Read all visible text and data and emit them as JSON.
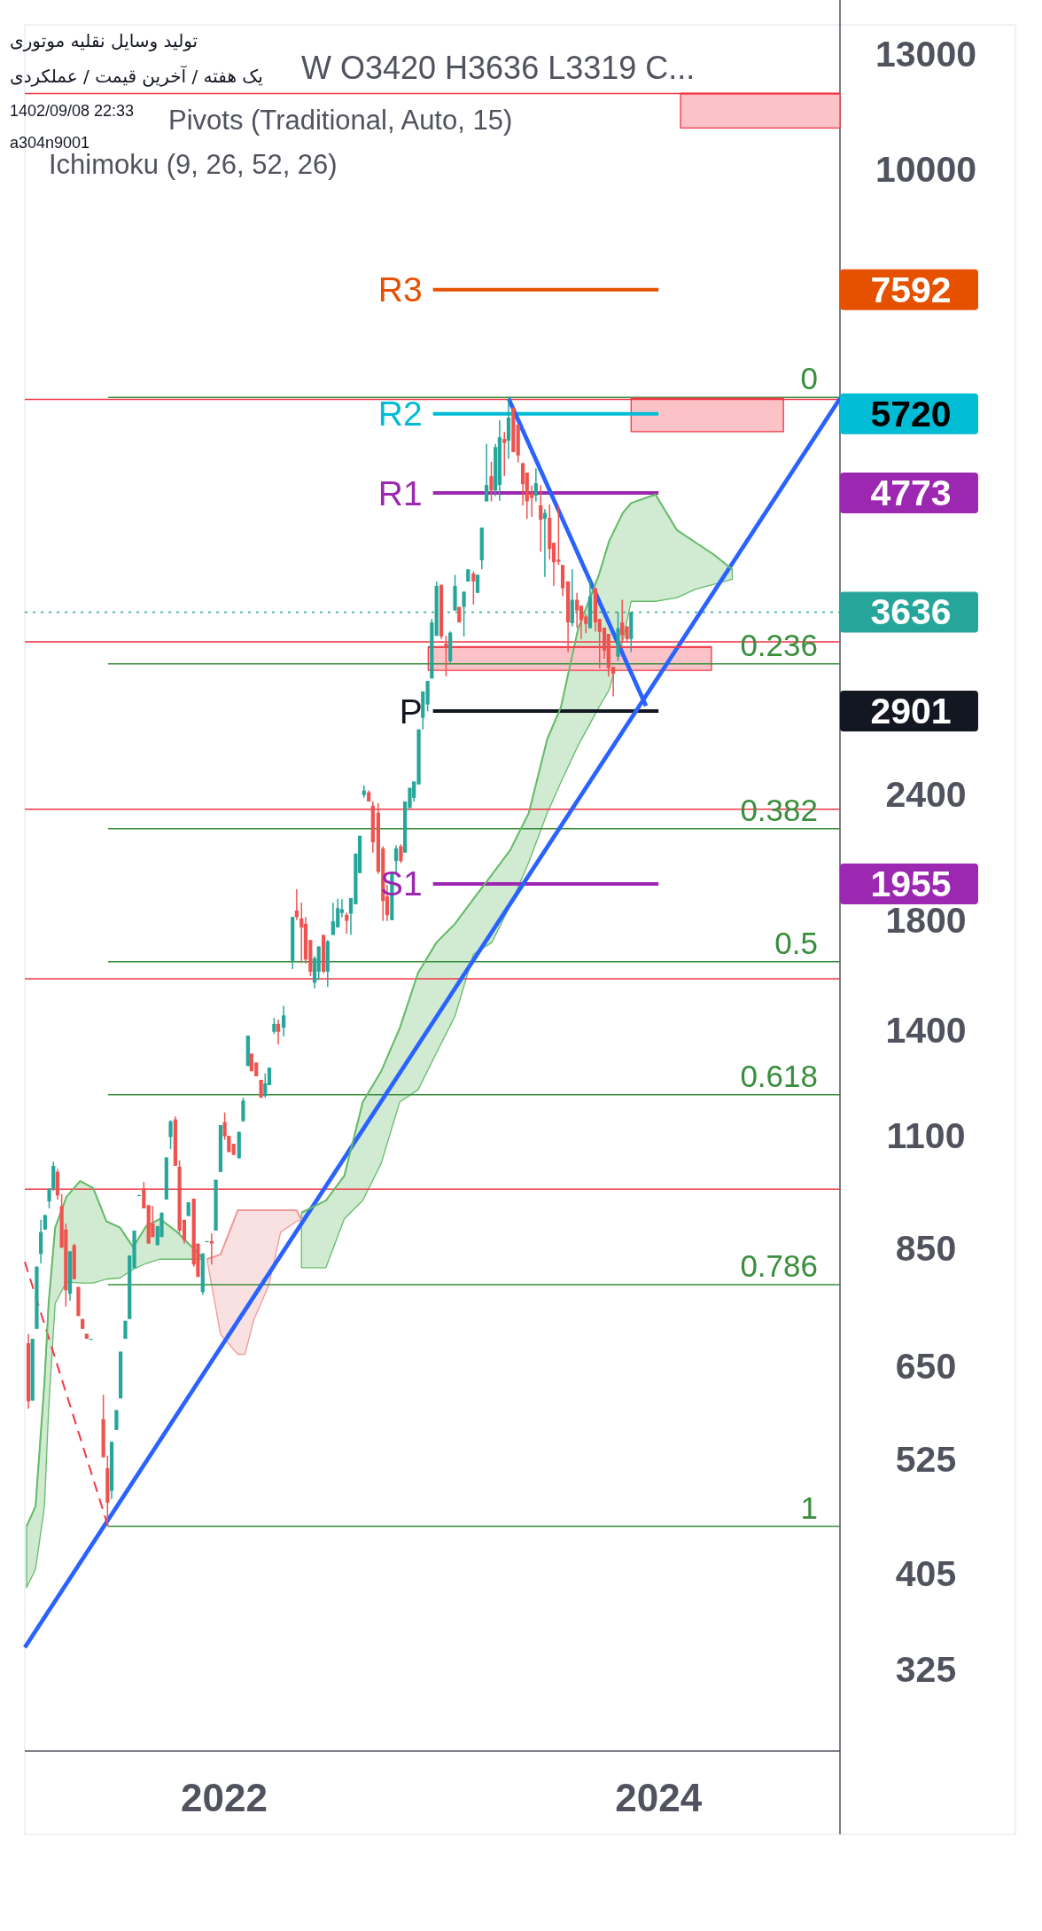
{
  "chart_data": {
    "type": "candlestick",
    "title": "تولید وسایل نقلیه موتوری",
    "subtitle": "یک هفته / آخرین قیمت / عملکردی",
    "annotations": [
      "1402/09/08 22:33",
      "a304n9001",
      "W  O3420  H3636  L3319  C...",
      "Pivots (Traditional, Auto, 15)",
      "Ichimoku (9, 26, 52, 26)",
      "7592",
      "5720",
      "4773",
      "2901",
      "1955"
    ],
    "log": true,
    "xlim": [
      "2021-01-31",
      "2024-11-01"
    ],
    "ylim": [
      270,
      13900
    ],
    "xticks": [
      {
        "value": "2022-01-01",
        "label": "2022"
      },
      {
        "value": "2024-01-01",
        "label": "2024"
      }
    ],
    "yticks": [
      325,
      405,
      525,
      650,
      850,
      1100,
      1400,
      1800,
      2400,
      10000,
      13000
    ],
    "x": [
      "2021-02-06",
      "2021-02-13",
      "2021-02-20",
      "2021-02-27",
      "2021-03-06",
      "2021-03-13",
      "2021-03-20",
      "2021-03-27",
      "2021-04-03",
      "2021-04-10",
      "2021-04-17",
      "2021-04-24",
      "2021-05-01",
      "2021-05-08",
      "2021-05-15",
      "2021-05-22",
      "2021-06-12",
      "2021-06-19",
      "2021-06-26",
      "2021-07-04",
      "2021-07-11",
      "2021-07-19",
      "2021-07-26",
      "2021-08-03",
      "2021-08-11",
      "2021-08-19",
      "2021-08-27",
      "2021-09-03",
      "2021-09-11",
      "2021-09-18",
      "2021-09-26",
      "2021-10-03",
      "2021-10-11",
      "2021-10-18",
      "2021-10-26",
      "2021-11-02",
      "2021-11-11",
      "2021-11-18",
      "2021-11-26",
      "2021-12-03",
      "2021-12-11",
      "2021-12-18",
      "2021-12-26",
      "2022-01-02",
      "2022-01-09",
      "2022-01-17",
      "2022-01-26",
      "2022-02-02",
      "2022-02-10",
      "2022-02-16",
      "2022-02-24",
      "2022-03-04",
      "2022-03-11",
      "2022-03-18",
      "2022-03-26",
      "2022-04-02",
      "2022-04-11",
      "2022-04-26",
      "2022-05-03",
      "2022-05-11",
      "2022-05-18",
      "2022-05-26",
      "2022-06-02",
      "2022-06-09",
      "2022-06-17",
      "2022-06-24",
      "2022-07-03",
      "2022-07-11",
      "2022-07-18",
      "2022-07-26",
      "2022-08-02",
      "2022-08-10",
      "2022-08-17",
      "2022-08-24",
      "2022-09-01",
      "2022-09-08",
      "2022-09-17",
      "2022-09-25",
      "2022-10-02",
      "2022-10-10",
      "2022-10-17",
      "2022-10-25",
      "2022-11-01",
      "2022-11-09",
      "2022-11-16",
      "2022-11-24",
      "2022-12-01",
      "2022-12-09",
      "2022-12-16",
      "2022-12-24",
      "2023-01-01",
      "2023-01-09",
      "2023-01-16",
      "2023-01-24",
      "2023-01-31",
      "2023-02-08",
      "2023-02-15",
      "2023-02-24",
      "2023-03-03",
      "2023-03-10",
      "2023-03-18",
      "2023-03-26",
      "2023-04-02",
      "2023-04-09",
      "2023-04-17",
      "2023-04-24",
      "2023-05-02",
      "2023-05-10",
      "2023-05-18",
      "2023-05-25",
      "2023-06-02",
      "2023-06-09",
      "2023-06-17",
      "2023-06-24",
      "2023-07-02",
      "2023-07-09",
      "2023-07-17",
      "2023-07-24",
      "2023-08-02",
      "2023-08-09",
      "2023-08-17",
      "2023-08-24",
      "2023-09-01",
      "2023-09-08",
      "2023-09-17",
      "2023-09-24",
      "2023-10-02",
      "2023-10-09",
      "2023-10-17",
      "2023-10-25",
      "2023-11-01",
      "2023-11-09",
      "2023-11-16"
    ],
    "ohlc": [
      [
        685,
        700,
        590,
        600
      ],
      [
        601,
        692,
        601,
        692
      ],
      [
        708,
        816,
        708,
        816
      ],
      [
        840,
        908,
        822,
        883
      ],
      [
        888,
        918,
        888,
        918
      ],
      [
        947,
        975,
        932,
        975
      ],
      [
        975,
        1037,
        970,
        1027
      ],
      [
        1013,
        1020,
        951,
        960
      ],
      [
        937,
        963,
        852,
        852
      ],
      [
        888,
        900,
        745,
        773
      ],
      [
        767,
        845,
        755,
        845
      ],
      [
        857,
        860,
        793,
        793
      ],
      [
        779,
        779,
        729,
        729
      ],
      [
        724,
        724,
        708,
        708
      ],
      [
        700,
        700,
        692,
        692
      ],
      [
        692,
        692,
        692,
        692
      ],
      [
        576,
        609,
        528,
        528
      ],
      [
        515,
        530,
        451,
        476
      ],
      [
        489,
        547,
        480,
        547
      ],
      [
        562,
        588,
        562,
        588
      ],
      [
        604,
        672,
        604,
        672
      ],
      [
        692,
        721,
        692,
        721
      ],
      [
        724,
        837,
        724,
        837
      ],
      [
        813,
        886,
        813,
        886
      ],
      [
        961,
        961,
        961,
        961
      ],
      [
        975,
        990,
        932,
        932
      ],
      [
        939,
        939,
        860,
        860
      ],
      [
        900,
        937,
        873,
        873
      ],
      [
        857,
        895,
        857,
        895
      ],
      [
        873,
        923,
        873,
        923
      ],
      [
        951,
        1047,
        951,
        1047
      ],
      [
        1097,
        1140,
        1067,
        1137
      ],
      [
        1142,
        1150,
        1027,
        1027
      ],
      [
        1025,
        1040,
        880,
        886
      ],
      [
        908,
        908,
        860,
        867
      ],
      [
        916,
        945,
        916,
        945
      ],
      [
        953,
        953,
        816,
        820
      ],
      [
        860,
        860,
        797,
        797
      ],
      [
        770,
        841,
        765,
        841
      ],
      [
        865,
        865,
        865,
        865
      ],
      [
        865,
        880,
        820,
        860
      ],
      [
        886,
        995,
        886,
        995
      ],
      [
        1013,
        1127,
        1013,
        1127
      ],
      [
        1135,
        1160,
        1090,
        1099
      ],
      [
        1100,
        1100,
        1060,
        1060
      ],
      [
        1080,
        1080,
        1053,
        1053
      ],
      [
        1045,
        1110,
        1045,
        1110
      ],
      [
        1138,
        1200,
        1135,
        1192
      ],
      [
        1290,
        1383,
        1290,
        1383
      ],
      [
        1327,
        1327,
        1275,
        1275
      ],
      [
        1300,
        1300,
        1260,
        1260
      ],
      [
        1250,
        1250,
        1200,
        1200
      ],
      [
        1205,
        1268,
        1200,
        1240
      ],
      [
        1235,
        1285,
        1235,
        1285
      ],
      [
        1395,
        1440,
        1388,
        1420
      ],
      [
        1420,
        1434,
        1355,
        1395
      ],
      [
        1408,
        1480,
        1380,
        1448
      ],
      [
        1640,
        1813,
        1610,
        1813
      ],
      [
        1840,
        1931,
        1800,
        1812
      ],
      [
        1807,
        1873,
        1632,
        1770
      ],
      [
        1785,
        1813,
        1630,
        1645
      ],
      [
        1720,
        1720,
        1585,
        1600
      ],
      [
        1560,
        1658,
        1540,
        1650
      ],
      [
        1600,
        1695,
        1570,
        1695
      ],
      [
        1740,
        1740,
        1594,
        1600
      ],
      [
        1600,
        1720,
        1545,
        1715
      ],
      [
        1740,
        1873,
        1740,
        1795
      ],
      [
        1770,
        1890,
        1770,
        1850
      ],
      [
        1830,
        1888,
        1812,
        1845
      ],
      [
        1822,
        1830,
        1745,
        1797
      ],
      [
        1827,
        1893,
        1740,
        1893
      ],
      [
        1866,
        2095,
        1866,
        2095
      ],
      [
        2004,
        2182,
        2004,
        2182
      ],
      [
        2395,
        2447,
        2380,
        2420
      ],
      [
        2410,
        2420,
        2360,
        2360
      ],
      [
        2337,
        2360,
        2100,
        2150
      ],
      [
        2300,
        2350,
        2000,
        2010
      ],
      [
        2120,
        2130,
        1797,
        1880
      ],
      [
        1900,
        1950,
        1797,
        1820
      ],
      [
        1800,
        2010,
        1800,
        2010
      ],
      [
        2060,
        2135,
        2004,
        2120
      ],
      [
        2130,
        2140,
        2050,
        2060
      ],
      [
        2100,
        2360,
        2100,
        2360
      ],
      [
        2325,
        2435,
        2325,
        2435
      ],
      [
        2380,
        2470,
        2360,
        2470
      ],
      [
        2454,
        2782,
        2454,
        2782
      ],
      [
        2857,
        3034,
        2782,
        3034
      ],
      [
        2945,
        3108,
        2900,
        3108
      ],
      [
        3125,
        3580,
        3125,
        3552
      ],
      [
        3445,
        3900,
        3445,
        3860
      ],
      [
        3870,
        3870,
        3420,
        3440
      ],
      [
        3385,
        3445,
        3140,
        3355
      ],
      [
        3250,
        3480,
        3240,
        3470
      ],
      [
        3650,
        3960,
        3650,
        3860
      ],
      [
        3680,
        3680,
        3552,
        3552
      ],
      [
        3680,
        3810,
        3440,
        3810
      ],
      [
        3900,
        4010,
        3900,
        4010
      ],
      [
        3970,
        3990,
        3700,
        3900
      ],
      [
        3800,
        3960,
        3800,
        3960
      ],
      [
        4094,
        4411,
        4010,
        4411
      ],
      [
        4683,
        5338,
        4683,
        4860
      ],
      [
        4960,
        5127,
        4683,
        4800
      ],
      [
        4800,
        5338,
        4740,
        5300
      ],
      [
        4860,
        5636,
        4690,
        5420
      ],
      [
        5400,
        5490,
        4960,
        5350
      ],
      [
        5380,
        5947,
        5160,
        5670
      ],
      [
        5800,
        5800,
        5240,
        5240
      ],
      [
        5580,
        5580,
        5118,
        5200
      ],
      [
        5110,
        5110,
        4640,
        4870
      ],
      [
        5000,
        5000,
        4500,
        4683
      ],
      [
        4770,
        4855,
        4520,
        4720
      ],
      [
        4745,
        5050,
        4680,
        4880
      ],
      [
        4640,
        4860,
        4175,
        4490
      ],
      [
        4500,
        4600,
        3940,
        4560
      ],
      [
        4510,
        4650,
        4100,
        4200
      ],
      [
        4260,
        4260,
        3860,
        4075
      ],
      [
        4100,
        4640,
        4050,
        4080
      ],
      [
        4050,
        4050,
        3770,
        3840
      ],
      [
        3900,
        3900,
        3320,
        3552
      ],
      [
        3545,
        4010,
        3520,
        3740
      ],
      [
        3740,
        3800,
        3510,
        3650
      ],
      [
        3690,
        3690,
        3420,
        3570
      ],
      [
        3600,
        3620,
        3465,
        3540
      ],
      [
        3505,
        3920,
        3505,
        3770
      ],
      [
        3840,
        3840,
        3480,
        3552
      ],
      [
        3580,
        3580,
        3200,
        3475
      ],
      [
        3510,
        3510,
        3270,
        3330
      ],
      [
        3460,
        3460,
        3140,
        3200
      ],
      [
        3210,
        3210,
        3000,
        3160
      ],
      [
        3285,
        3640,
        3250,
        3505
      ],
      [
        3552,
        3740,
        3400,
        3450
      ],
      [
        3520,
        3520,
        3400,
        3420
      ],
      [
        3420,
        3636,
        3319,
        3636
      ]
    ],
    "ref_lines": [
      {
        "axis": "y",
        "value": 11880,
        "color": "#f23645"
      },
      {
        "axis": "y",
        "value": 5909,
        "color": "#f23645"
      },
      {
        "axis": "y",
        "value": 3397,
        "color": "#f23645"
      },
      {
        "axis": "y",
        "value": 2318,
        "color": "#f23645"
      },
      {
        "axis": "y",
        "value": 1574,
        "color": "#f23645"
      },
      {
        "axis": "y",
        "value": 974,
        "color": "#f23645"
      },
      {
        "axis": "y",
        "value": 3636,
        "label": "3636",
        "color": "#26a69a",
        "line_style": "dotted"
      }
    ],
    "series": [
      {
        "type": "line",
        "color": "#66bb6a",
        "x": [
          "2021-02-03",
          "2021-02-18",
          "2021-03-05",
          "2021-03-12",
          "2021-03-23",
          "2021-04-11",
          "2021-05-04",
          "2021-05-26",
          "2021-06-17",
          "2021-07-10",
          "2021-08-01",
          "2021-08-23",
          "2021-09-15",
          "2021-10-14",
          "2021-11-28"
        ],
        "values": [
          451,
          472,
          626,
          750,
          892,
          957,
          992,
          976,
          905,
          892,
          853,
          895,
          910,
          883,
          830
        ],
        "upper": [
          451,
          472,
          626,
          750,
          892,
          957,
          992,
          976,
          905,
          892,
          853,
          895,
          910,
          883,
          830
        ],
        "lower": [
          392,
          409,
          472,
          589,
          750,
          788,
          786,
          786,
          793,
          795,
          811,
          822,
          830,
          830,
          830
        ]
      },
      {
        "type": "line",
        "color": "#ef9a9a",
        "x": [
          "2021-12-03",
          "2021-12-26",
          "2022-01-24",
          "2022-02-05",
          "2022-02-20",
          "2022-03-17",
          "2022-04-06",
          "2022-05-03",
          "2022-05-11"
        ],
        "values": [
          830,
          839,
          928,
          928,
          928,
          928,
          928,
          928,
          908
        ],
        "upper": [
          830,
          839,
          928,
          928,
          928,
          928,
          928,
          928,
          908
        ],
        "lower": [
          830,
          699,
          668,
          668,
          723,
          782,
          883,
          905,
          908
        ]
      },
      {
        "type": "line",
        "color": "#66bb6a",
        "x": [
          "2022-05-11",
          "2022-06-21",
          "2022-07-22",
          "2022-08-22",
          "2022-09-22",
          "2022-10-23",
          "2022-11-23",
          "2022-12-24",
          "2023-01-24",
          "2023-02-24",
          "2023-03-27",
          "2023-04-27",
          "2023-05-28",
          "2023-06-28",
          "2023-07-21",
          "2023-08-19",
          "2023-09-23",
          "2023-10-10",
          "2023-11-02",
          "2023-11-16",
          "2023-12-27",
          "2024-02-01",
          "2024-03-03",
          "2024-04-03",
          "2024-05-04"
        ],
        "values": [
          923,
          949,
          1004,
          1188,
          1275,
          1406,
          1596,
          1711,
          1785,
          1889,
          1997,
          2113,
          2299,
          2721,
          2927,
          3503,
          3962,
          4276,
          4560,
          4665,
          4757,
          4385,
          4264,
          4147,
          4009
        ],
        "upper": [
          923,
          949,
          1004,
          1188,
          1275,
          1406,
          1596,
          1711,
          1785,
          1889,
          1997,
          2113,
          2299,
          2721,
          2927,
          3503,
          3962,
          4276,
          4560,
          4665,
          4757,
          4385,
          4264,
          4147,
          4009
        ],
        "lower": [
          814,
          814,
          910,
          949,
          1033,
          1188,
          1222,
          1330,
          1446,
          1665,
          1711,
          1862,
          2054,
          2299,
          2466,
          2683,
          2927,
          3044,
          3407,
          3727,
          3727,
          3758,
          3831,
          3875,
          3919
        ]
      },
      {
        "type": "line",
        "color": "#f23645",
        "x": [
          "2024-02-07",
          "2024-11-01"
        ],
        "values": [
          11880,
          11880
        ],
        "upper": [
          11880,
          11880
        ],
        "lower": [
          10983,
          10983
        ]
      },
      {
        "type": "line",
        "color": "#f23645",
        "x": [
          "2023-11-16",
          "2024-07-29"
        ],
        "values": [
          5922,
          5922
        ],
        "upper": [
          5922,
          5922
        ],
        "lower": [
          5490,
          5490
        ]
      },
      {
        "type": "line",
        "color": "#f23645",
        "x": [
          "2022-12-10",
          "2024-03-30"
        ],
        "values": [
          3358,
          3358
        ],
        "upper": [
          3358,
          3358
        ],
        "lower": [
          3184,
          3184
        ]
      },
      {
        "type": "line",
        "name": "0",
        "color": "#388e3c",
        "x": [
          "2021-06-20",
          "2024-11-01"
        ],
        "values": [
          5938,
          5938
        ]
      },
      {
        "type": "line",
        "name": "0.236",
        "color": "#388e3c",
        "x": [
          "2021-06-20",
          "2024-11-01"
        ],
        "values": [
          3232,
          3232
        ]
      },
      {
        "type": "line",
        "name": "0.382",
        "color": "#388e3c",
        "x": [
          "2021-06-20",
          "2024-11-01"
        ],
        "values": [
          2218,
          2218
        ]
      },
      {
        "type": "line",
        "name": "0.5",
        "color": "#388e3c",
        "x": [
          "2021-06-20",
          "2024-11-01"
        ],
        "values": [
          1637,
          1637
        ]
      },
      {
        "type": "line",
        "name": "0.618",
        "color": "#388e3c",
        "x": [
          "2021-06-20",
          "2024-11-01"
        ],
        "values": [
          1208,
          1208
        ]
      },
      {
        "type": "line",
        "name": "0.786",
        "color": "#388e3c",
        "x": [
          "2021-06-20",
          "2024-11-01"
        ],
        "values": [
          783,
          783
        ]
      },
      {
        "type": "line",
        "name": "1",
        "color": "#388e3c",
        "x": [
          "2021-06-20",
          "2024-11-01"
        ],
        "values": [
          451,
          451
        ]
      },
      {
        "type": "line",
        "name": "R3",
        "color": "#e65100",
        "x": [
          "2022-12-18",
          "2024-01-01"
        ],
        "values": [
          7592,
          7592
        ]
      },
      {
        "type": "line",
        "name": "R2",
        "color": "#00bcd4",
        "x": [
          "2022-12-18",
          "2024-01-01"
        ],
        "values": [
          5720,
          5720
        ]
      },
      {
        "type": "line",
        "name": "R1",
        "color": "#9c27b0",
        "x": [
          "2022-12-18",
          "2024-01-01"
        ],
        "values": [
          4773,
          4773
        ]
      },
      {
        "type": "line",
        "name": "P",
        "color": "#131722",
        "x": [
          "2022-12-18",
          "2024-01-01"
        ],
        "values": [
          2901,
          2901
        ]
      },
      {
        "type": "line",
        "name": "S1",
        "color": "#9c27b0",
        "x": [
          "2022-12-18",
          "2024-01-01"
        ],
        "values": [
          1955,
          1955
        ]
      },
      {
        "type": "line",
        "color": "#2962ff",
        "x": [
          "2021-01-31",
          "2024-11-01"
        ],
        "values": [
          342,
          5922
        ]
      },
      {
        "type": "line",
        "color": "#2962ff",
        "x": [
          "2023-04-24",
          "2023-12-11"
        ],
        "values": [
          5922,
          2935
        ]
      },
      {
        "type": "line",
        "color": "#f23645",
        "line_style": "dashed",
        "x": [
          "2021-01-31",
          "2021-06-20"
        ],
        "values": [
          825,
          451
        ]
      }
    ]
  }
}
